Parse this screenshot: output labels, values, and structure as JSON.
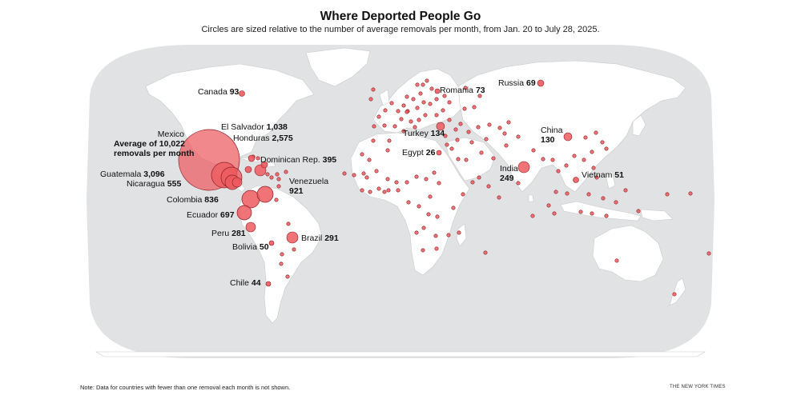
{
  "header": {
    "title": "Where Deported People Go",
    "subtitle": "Circles are sized relative to the number of average removals per month, from Jan. 20 to July 28, 2025."
  },
  "footer": {
    "note": "Note: Data for countries with fewer than one removal each month is not shown.",
    "credit": "THE NEW YORK TIMES"
  },
  "colors": {
    "ocean_globe": "#e1e2e4",
    "land": "#ffffff",
    "circle_fill": "#ec5a5f",
    "circle_stroke": "#8c1d22"
  },
  "labels": {
    "mexico_name": "Mexico",
    "mexico_line1": "Average of 10,022",
    "mexico_line2": "removals per month",
    "canada_name": "Canada",
    "canada_value": "93",
    "el_salvador_name": "El Salvador",
    "el_salvador_value": "1,038",
    "honduras_name": "Honduras",
    "honduras_value": "2,575",
    "dominican_name": "Dominican Rep.",
    "dominican_value": "395",
    "guatemala_name": "Guatemala",
    "guatemala_value": "3,096",
    "nicaragua_name": "Nicaragua",
    "nicaragua_value": "555",
    "venezuela_name": "Venezuela",
    "venezuela_value": "921",
    "colombia_name": "Colombia",
    "colombia_value": "836",
    "ecuador_name": "Ecuador",
    "ecuador_value": "697",
    "peru_name": "Peru",
    "peru_value": "281",
    "brazil_name": "Brazil",
    "brazil_value": "291",
    "bolivia_name": "Bolivia",
    "bolivia_value": "50",
    "chile_name": "Chile",
    "chile_value": "44",
    "romania_name": "Romania",
    "romania_value": "73",
    "russia_name": "Russia",
    "russia_value": "69",
    "turkey_name": "Turkey",
    "turkey_value": "134",
    "egypt_name": "Egypt",
    "egypt_value": "26",
    "china_name": "China",
    "china_value": "130",
    "india_name": "India",
    "india_value": "249",
    "vietnam_name": "Vietnam",
    "vietnam_value": "51"
  }
}
